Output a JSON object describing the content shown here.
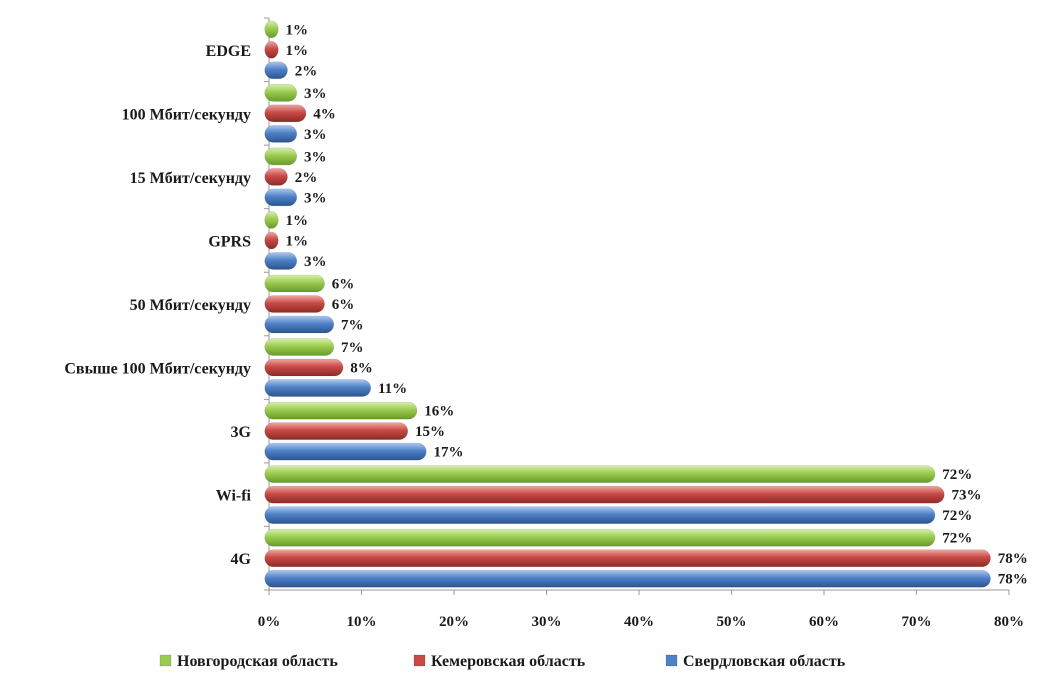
{
  "chart_data": {
    "type": "bar",
    "orientation": "horizontal",
    "categories": [
      "EDGE",
      "100 Мбит/секунду",
      "15 Мбит/секунду",
      "GPRS",
      "50 Мбит/секунду",
      "Свыше 100 Мбит/секунду",
      "3G",
      "Wi-fi",
      "4G"
    ],
    "series": [
      {
        "name": "Новгородская область",
        "color": "#9bcc50",
        "values": [
          1,
          3,
          3,
          1,
          6,
          7,
          16,
          72,
          72
        ],
        "labels": [
          "1%",
          "3%",
          "3%",
          "1%",
          "6%",
          "7%",
          "16%",
          "72%",
          "72%"
        ]
      },
      {
        "name": "Кемеровская область",
        "color": "#c84a46",
        "values": [
          1,
          4,
          2,
          1,
          6,
          8,
          15,
          73,
          78
        ],
        "labels": [
          "1%",
          "4%",
          "2%",
          "1%",
          "6%",
          "8%",
          "15%",
          "73%",
          "78%"
        ]
      },
      {
        "name": "Свердловская область",
        "color": "#4f81c7",
        "values": [
          2,
          3,
          3,
          3,
          7,
          11,
          17,
          72,
          78
        ],
        "labels": [
          "2%",
          "3%",
          "3%",
          "3%",
          "7%",
          "11%",
          "17%",
          "72%",
          "78%"
        ]
      }
    ],
    "x_ticks": [
      "0%",
      "10%",
      "20%",
      "30%",
      "40%",
      "50%",
      "60%",
      "70%",
      "80%"
    ],
    "xlim": [
      0,
      80
    ],
    "grid": false,
    "legend_position": "bottom"
  }
}
